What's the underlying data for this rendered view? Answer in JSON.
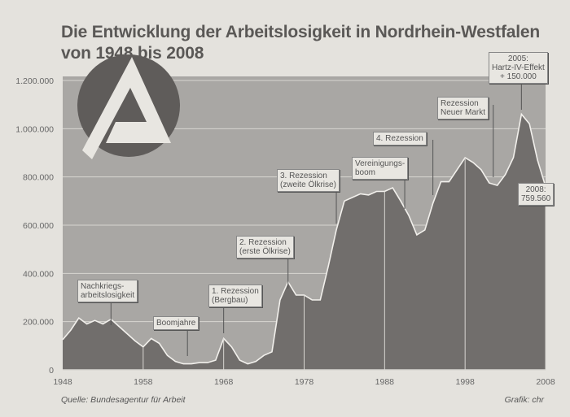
{
  "chart_data": {
    "type": "area",
    "title": "Die Entwicklung der Arbeitslosigkeit in Nordrhein-Westfalen",
    "subtitle": "von 1948 bis 2008",
    "xlabel": "",
    "ylabel": "",
    "xlim": [
      1948,
      2008
    ],
    "ylim": [
      0,
      1200000
    ],
    "x_ticks": [
      "1948",
      "1958",
      "1968",
      "1978",
      "1988",
      "1998",
      "2008"
    ],
    "y_ticks": [
      "0",
      "200.000",
      "400.000",
      "600.000",
      "800.000",
      "1.000.000",
      "1.200.000"
    ],
    "grid": true,
    "x": [
      1948,
      1949,
      1950,
      1951,
      1952,
      1953,
      1954,
      1955,
      1956,
      1957,
      1958,
      1959,
      1960,
      1961,
      1962,
      1963,
      1964,
      1965,
      1966,
      1967,
      1968,
      1969,
      1970,
      1971,
      1972,
      1973,
      1974,
      1975,
      1976,
      1977,
      1978,
      1979,
      1980,
      1981,
      1982,
      1983,
      1984,
      1985,
      1986,
      1987,
      1988,
      1989,
      1990,
      1991,
      1992,
      1993,
      1994,
      1995,
      1996,
      1997,
      1998,
      1999,
      2000,
      2001,
      2002,
      2003,
      2004,
      2005,
      2006,
      2007,
      2008
    ],
    "values": [
      125000,
      165000,
      215000,
      190000,
      205000,
      190000,
      210000,
      180000,
      150000,
      120000,
      95000,
      130000,
      110000,
      60000,
      35000,
      25000,
      25000,
      30000,
      30000,
      40000,
      130000,
      95000,
      40000,
      25000,
      35000,
      60000,
      75000,
      290000,
      365000,
      310000,
      310000,
      290000,
      290000,
      430000,
      580000,
      700000,
      715000,
      730000,
      725000,
      740000,
      740000,
      755000,
      700000,
      640000,
      560000,
      580000,
      690000,
      780000,
      780000,
      830000,
      880000,
      860000,
      830000,
      775000,
      765000,
      810000,
      880000,
      1060000,
      1020000,
      870000,
      759560
    ],
    "annotations": [
      {
        "year": 1954,
        "text": "Nachkriegs-\narbeitslosigkeit"
      },
      {
        "year": 1963.5,
        "text": "Boomjahre"
      },
      {
        "year": 1968,
        "text": "1. Rezession\n(Bergbau)"
      },
      {
        "year": 1976,
        "text": "2. Rezession\n(erste Ölkrise)"
      },
      {
        "year": 1982,
        "text": "3. Rezession\n(zweite Ölkrise)"
      },
      {
        "year": 1990.5,
        "text": "Vereinigungs-\nboom"
      },
      {
        "year": 1994,
        "text": "4. Rezession"
      },
      {
        "year": 2001.5,
        "text": "Rezession\nNeuer Markt"
      },
      {
        "year": 2005,
        "text": "2005:\nHartz-IV-Effekt\n+ 150.000"
      },
      {
        "year": 2008,
        "text": "2008:\n759.560"
      }
    ],
    "source": "Quelle: Bundesagentur für Arbeit",
    "credit": "Grafik: chr",
    "logo": "Bundesagentur für Arbeit logo",
    "colors": {
      "background": "#e4e2dd",
      "plot": "#a9a7a4",
      "area": "#716e6c",
      "line": "#f2f0ec"
    }
  }
}
